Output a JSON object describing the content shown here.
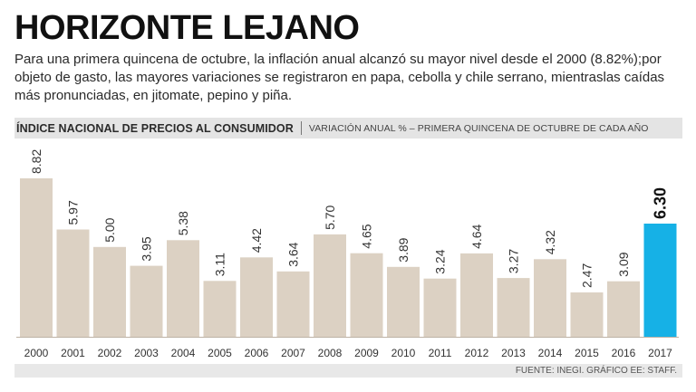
{
  "header": {
    "title": "HORIZONTE LEJANO",
    "subtitle": "Para una primera quincena de octubre, la inflación anual alcanzó su mayor nivel desde el 2000 (8.82%);por objeto de gasto, las mayores variaciones se registraron en papa, cebolla y chile serrano, mientraslas caídas más pronunciadas, en jitomate, pepino y piña."
  },
  "band": {
    "left": "ÍNDICE NACIONAL DE PRECIOS AL CONSUMIDOR",
    "right": "VARIACIÓN ANUAL % – PRIMERA QUINCENA DE OCTUBRE DE CADA AÑO"
  },
  "footer": {
    "source": "FUENTE: INEGI. GRÁFICO EE: STAFF."
  },
  "colors": {
    "bar": "#dcd1c3",
    "highlight": "#16b1e6",
    "baseline": "#bdb2a5"
  },
  "chart_data": {
    "type": "bar",
    "title": "ÍNDICE NACIONAL DE PRECIOS AL CONSUMIDOR",
    "subtitle": "VARIACIÓN ANUAL % – PRIMERA QUINCENA DE OCTUBRE DE CADA AÑO",
    "xlabel": "",
    "ylabel": "",
    "categories": [
      "2000",
      "2001",
      "2002",
      "2003",
      "2004",
      "2005",
      "2006",
      "2007",
      "2008",
      "2009",
      "2010",
      "2011",
      "2012",
      "2013",
      "2014",
      "2015",
      "2016",
      "2017"
    ],
    "values": [
      8.82,
      5.97,
      5.0,
      3.95,
      5.38,
      3.11,
      4.42,
      3.64,
      5.7,
      4.65,
      3.89,
      3.24,
      4.64,
      3.27,
      4.32,
      2.47,
      3.09,
      6.3
    ],
    "labels": [
      "8.82",
      "5.97",
      "5.00",
      "3.95",
      "5.38",
      "3.11",
      "4.42",
      "3.64",
      "5.70",
      "4.65",
      "3.89",
      "3.24",
      "4.64",
      "3.27",
      "4.32",
      "2.47",
      "3.09",
      "6.30"
    ],
    "highlight_category": "2017",
    "ylim": [
      0,
      8.82
    ],
    "grid": false,
    "legend": "none"
  }
}
